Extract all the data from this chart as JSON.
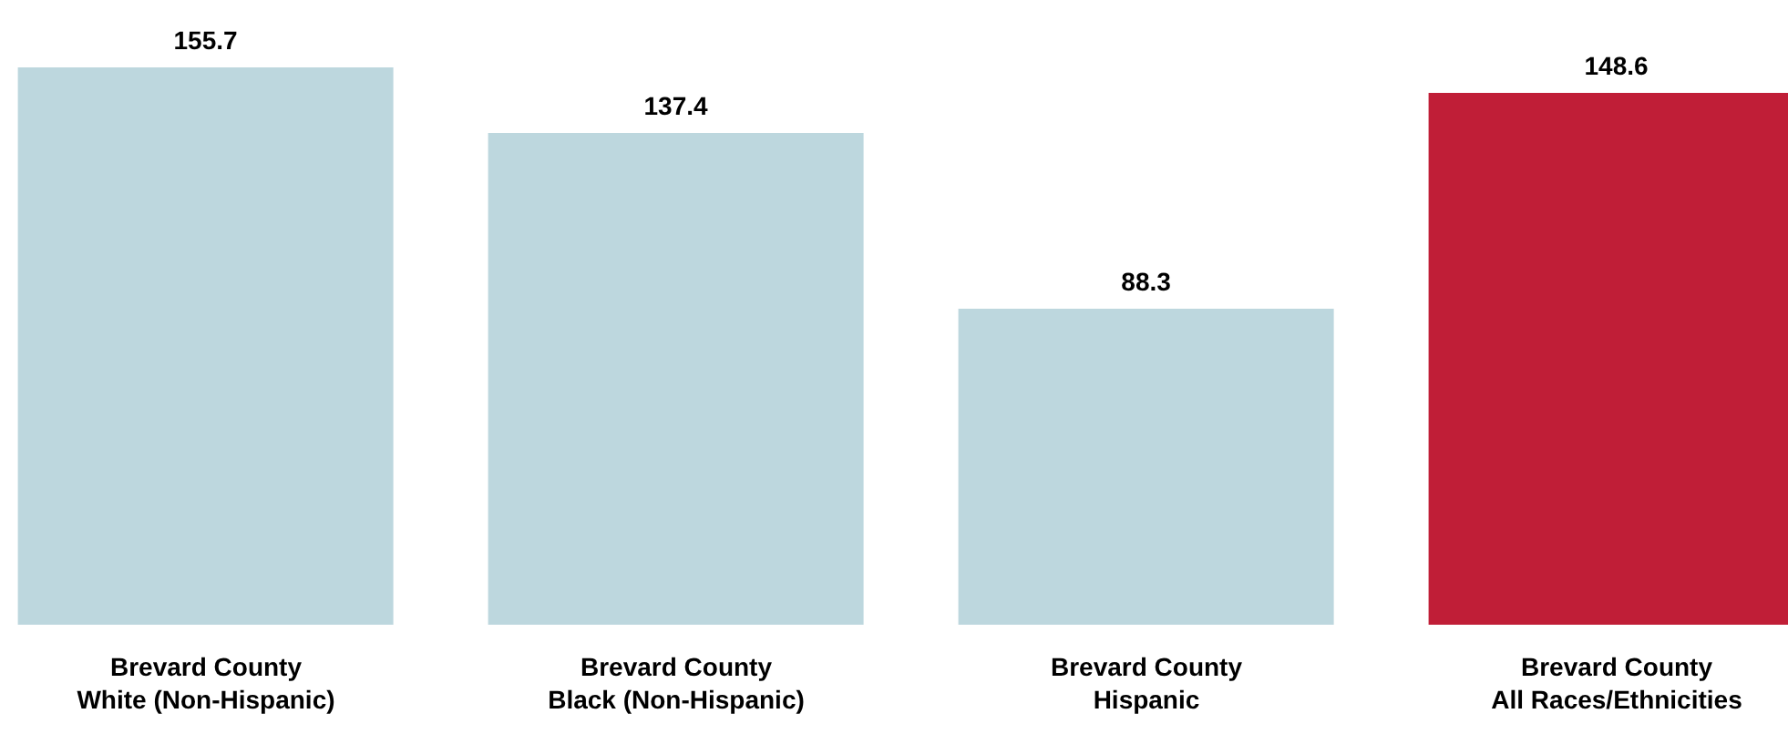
{
  "chart_data": {
    "type": "bar",
    "categories": [
      "Brevard County\nWhite (Non-Hispanic)",
      "Brevard County\nBlack (Non-Hispanic)",
      "Brevard County\nHispanic",
      "Brevard County\nAll Races/Ethnicities"
    ],
    "values": [
      155.7,
      137.4,
      88.3,
      148.6
    ],
    "colors": [
      "#bdd7de",
      "#bdd7de",
      "#bdd7de",
      "#c01e37"
    ],
    "data_labels": true,
    "grid": false,
    "legend": false
  }
}
